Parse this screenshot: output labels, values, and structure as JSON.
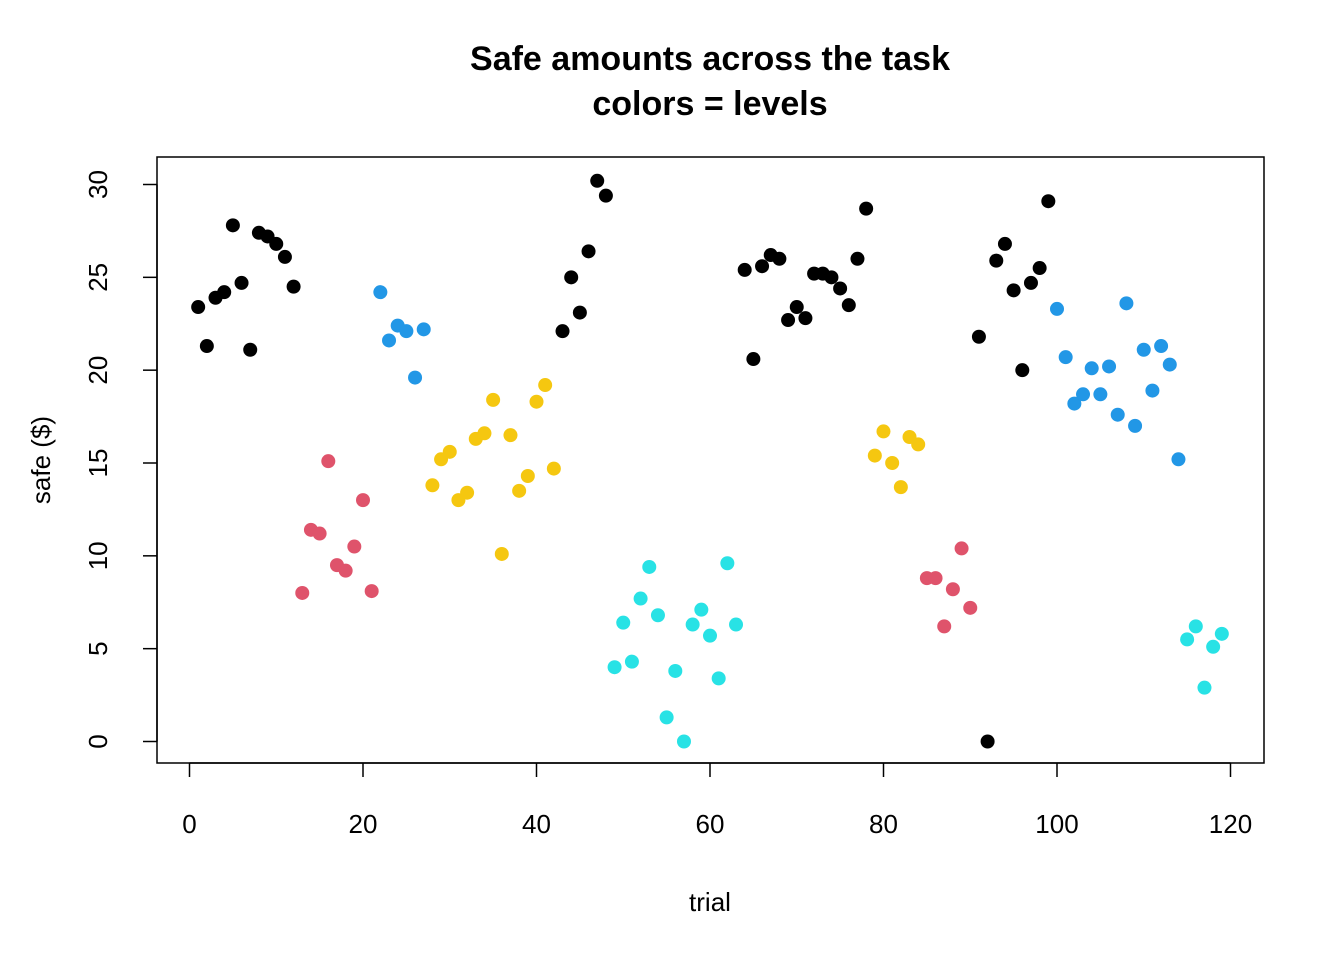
{
  "chart_data": {
    "type": "scatter",
    "title": "Safe amounts across the task",
    "subtitle": "colors = levels",
    "xlabel": "trial",
    "ylabel": "safe ($)",
    "xlim": [
      0,
      120
    ],
    "ylim": [
      0,
      30
    ],
    "xticks": [
      0,
      20,
      40,
      60,
      80,
      100,
      120
    ],
    "yticks": [
      0,
      5,
      10,
      15,
      20,
      25,
      30
    ],
    "grid": false,
    "legend": "none",
    "series": [
      {
        "color": "#000000",
        "points": [
          [
            1,
            23.4
          ],
          [
            2,
            21.3
          ],
          [
            3,
            23.9
          ],
          [
            4,
            24.2
          ],
          [
            5,
            27.8
          ],
          [
            6,
            24.7
          ],
          [
            7,
            21.1
          ],
          [
            8,
            27.4
          ],
          [
            9,
            27.2
          ],
          [
            10,
            26.8
          ],
          [
            11,
            26.1
          ],
          [
            12,
            24.5
          ],
          [
            43,
            22.1
          ],
          [
            44,
            25.0
          ],
          [
            45,
            23.1
          ],
          [
            46,
            26.4
          ],
          [
            47,
            30.2
          ],
          [
            48,
            29.4
          ],
          [
            64,
            25.4
          ],
          [
            65,
            20.6
          ],
          [
            66,
            25.6
          ],
          [
            67,
            26.2
          ],
          [
            68,
            26.0
          ],
          [
            69,
            22.7
          ],
          [
            70,
            23.4
          ],
          [
            71,
            22.8
          ],
          [
            72,
            25.2
          ],
          [
            73,
            25.2
          ],
          [
            74,
            25.0
          ],
          [
            75,
            24.4
          ],
          [
            76,
            23.5
          ],
          [
            77,
            26.0
          ],
          [
            78,
            28.7
          ],
          [
            91,
            21.8
          ],
          [
            92,
            0.0
          ],
          [
            93,
            25.9
          ],
          [
            94,
            26.8
          ],
          [
            95,
            24.3
          ],
          [
            96,
            20.0
          ],
          [
            97,
            24.7
          ],
          [
            98,
            25.5
          ],
          [
            99,
            29.1
          ]
        ]
      },
      {
        "color": "#DF536B",
        "points": [
          [
            13,
            8.0
          ],
          [
            14,
            11.4
          ],
          [
            15,
            11.2
          ],
          [
            16,
            15.1
          ],
          [
            17,
            9.5
          ],
          [
            18,
            9.2
          ],
          [
            19,
            10.5
          ],
          [
            20,
            13.0
          ],
          [
            21,
            8.1
          ],
          [
            85,
            8.8
          ],
          [
            86,
            8.8
          ],
          [
            87,
            6.2
          ],
          [
            88,
            8.2
          ],
          [
            89,
            10.4
          ],
          [
            90,
            7.2
          ]
        ]
      },
      {
        "color": "#2297E6",
        "points": [
          [
            22,
            24.2
          ],
          [
            23,
            21.6
          ],
          [
            24,
            22.4
          ],
          [
            25,
            22.1
          ],
          [
            26,
            19.6
          ],
          [
            27,
            22.2
          ],
          [
            100,
            23.3
          ],
          [
            101,
            20.7
          ],
          [
            102,
            18.2
          ],
          [
            103,
            18.7
          ],
          [
            104,
            20.1
          ],
          [
            105,
            18.7
          ],
          [
            106,
            20.2
          ],
          [
            107,
            17.6
          ],
          [
            108,
            23.6
          ],
          [
            109,
            17.0
          ],
          [
            110,
            21.1
          ],
          [
            111,
            18.9
          ],
          [
            112,
            21.3
          ],
          [
            113,
            20.3
          ],
          [
            114,
            15.2
          ]
        ]
      },
      {
        "color": "#F5C710",
        "points": [
          [
            28,
            13.8
          ],
          [
            29,
            15.2
          ],
          [
            30,
            15.6
          ],
          [
            31,
            13.0
          ],
          [
            32,
            13.4
          ],
          [
            33,
            16.3
          ],
          [
            34,
            16.6
          ],
          [
            35,
            18.4
          ],
          [
            36,
            10.1
          ],
          [
            37,
            16.5
          ],
          [
            38,
            13.5
          ],
          [
            39,
            14.3
          ],
          [
            40,
            18.3
          ],
          [
            41,
            19.2
          ],
          [
            42,
            14.7
          ],
          [
            79,
            15.4
          ],
          [
            80,
            16.7
          ],
          [
            81,
            15.0
          ],
          [
            82,
            13.7
          ],
          [
            83,
            16.4
          ],
          [
            84,
            16.0
          ]
        ]
      },
      {
        "color": "#28E2E5",
        "points": [
          [
            49,
            4.0
          ],
          [
            50,
            6.4
          ],
          [
            51,
            4.3
          ],
          [
            52,
            7.7
          ],
          [
            53,
            9.4
          ],
          [
            54,
            6.8
          ],
          [
            55,
            1.3
          ],
          [
            56,
            3.8
          ],
          [
            57,
            0.0
          ],
          [
            58,
            6.3
          ],
          [
            59,
            7.1
          ],
          [
            60,
            5.7
          ],
          [
            61,
            3.4
          ],
          [
            62,
            9.6
          ],
          [
            63,
            6.3
          ],
          [
            115,
            5.5
          ],
          [
            116,
            6.2
          ],
          [
            117,
            2.9
          ],
          [
            118,
            5.1
          ],
          [
            119,
            5.8
          ]
        ]
      }
    ]
  }
}
